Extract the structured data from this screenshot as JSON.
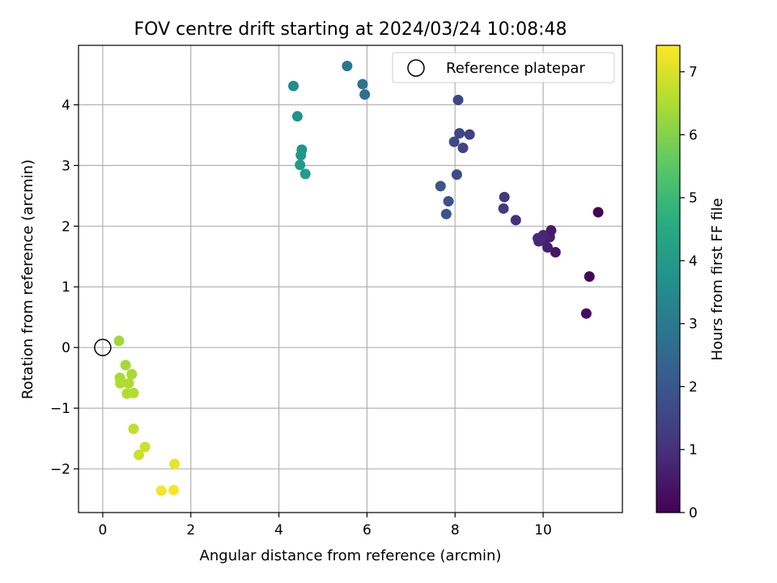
{
  "chart_data": {
    "type": "scatter",
    "title": "FOV centre drift starting at 2024/03/24 10:08:48",
    "xlabel": "Angular distance from reference (arcmin)",
    "ylabel": "Rotation from reference (arcmin)",
    "xlim": [
      -0.55,
      11.8
    ],
    "ylim": [
      -2.72,
      4.98
    ],
    "xticks": [
      0,
      2,
      4,
      6,
      8,
      10
    ],
    "yticks": [
      -2,
      -1,
      0,
      1,
      2,
      3,
      4
    ],
    "grid": true,
    "legend": {
      "position": "top-right",
      "entries": [
        "Reference platepar"
      ]
    },
    "reference": {
      "x": 0,
      "y": 0
    },
    "colorbar": {
      "label": "Hours from first FF file",
      "range": [
        0,
        7.42
      ],
      "ticks": [
        0,
        1,
        2,
        3,
        4,
        5,
        6,
        7
      ],
      "colormap": "viridis"
    },
    "points": [
      {
        "x": 11.25,
        "y": 2.23,
        "c": 0.05
      },
      {
        "x": 11.05,
        "y": 1.17,
        "c": 0.15
      },
      {
        "x": 10.98,
        "y": 0.56,
        "c": 0.25
      },
      {
        "x": 10.28,
        "y": 1.57,
        "c": 0.45
      },
      {
        "x": 10.18,
        "y": 1.93,
        "c": 0.55
      },
      {
        "x": 10.15,
        "y": 1.82,
        "c": 0.6
      },
      {
        "x": 10.1,
        "y": 1.65,
        "c": 0.65
      },
      {
        "x": 10.05,
        "y": 1.8,
        "c": 0.7
      },
      {
        "x": 10.0,
        "y": 1.85,
        "c": 0.75
      },
      {
        "x": 9.95,
        "y": 1.76,
        "c": 0.8
      },
      {
        "x": 9.88,
        "y": 1.8,
        "c": 0.85
      },
      {
        "x": 9.9,
        "y": 1.75,
        "c": 0.85
      },
      {
        "x": 9.38,
        "y": 2.1,
        "c": 1.05
      },
      {
        "x": 9.12,
        "y": 2.48,
        "c": 1.2
      },
      {
        "x": 9.1,
        "y": 2.29,
        "c": 1.25
      },
      {
        "x": 8.33,
        "y": 3.51,
        "c": 1.45
      },
      {
        "x": 8.18,
        "y": 3.29,
        "c": 1.5
      },
      {
        "x": 8.1,
        "y": 3.53,
        "c": 1.55
      },
      {
        "x": 8.07,
        "y": 4.08,
        "c": 1.6
      },
      {
        "x": 7.98,
        "y": 3.39,
        "c": 1.65
      },
      {
        "x": 8.04,
        "y": 2.85,
        "c": 1.75
      },
      {
        "x": 7.85,
        "y": 2.41,
        "c": 1.85
      },
      {
        "x": 7.8,
        "y": 2.2,
        "c": 1.9
      },
      {
        "x": 7.67,
        "y": 2.66,
        "c": 1.95
      },
      {
        "x": 5.95,
        "y": 4.17,
        "c": 2.7
      },
      {
        "x": 5.9,
        "y": 4.34,
        "c": 2.8
      },
      {
        "x": 5.55,
        "y": 4.64,
        "c": 3.0
      },
      {
        "x": 4.33,
        "y": 4.31,
        "c": 3.55
      },
      {
        "x": 4.42,
        "y": 3.81,
        "c": 3.7
      },
      {
        "x": 4.52,
        "y": 3.26,
        "c": 3.85
      },
      {
        "x": 4.5,
        "y": 3.17,
        "c": 3.9
      },
      {
        "x": 4.48,
        "y": 3.01,
        "c": 3.95
      },
      {
        "x": 4.6,
        "y": 2.86,
        "c": 4.05
      },
      {
        "x": 0.37,
        "y": 0.11,
        "c": 6.35
      },
      {
        "x": 0.52,
        "y": -0.29,
        "c": 6.4
      },
      {
        "x": 0.66,
        "y": -0.44,
        "c": 6.45
      },
      {
        "x": 0.39,
        "y": -0.5,
        "c": 6.45
      },
      {
        "x": 0.59,
        "y": -0.59,
        "c": 6.5
      },
      {
        "x": 0.4,
        "y": -0.59,
        "c": 6.5
      },
      {
        "x": 0.55,
        "y": -0.76,
        "c": 6.55
      },
      {
        "x": 0.7,
        "y": -0.75,
        "c": 6.55
      },
      {
        "x": 0.7,
        "y": -1.34,
        "c": 6.7
      },
      {
        "x": 0.96,
        "y": -1.64,
        "c": 6.85
      },
      {
        "x": 0.82,
        "y": -1.77,
        "c": 6.85
      },
      {
        "x": 1.63,
        "y": -1.92,
        "c": 7.2
      },
      {
        "x": 1.33,
        "y": -2.36,
        "c": 7.3
      },
      {
        "x": 1.61,
        "y": -2.35,
        "c": 7.35
      }
    ]
  }
}
